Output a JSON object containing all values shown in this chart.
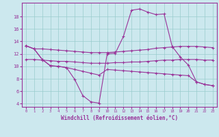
{
  "xlabel": "Windchill (Refroidissement éolien,°C)",
  "x_values": [
    0,
    1,
    2,
    3,
    4,
    5,
    6,
    7,
    8,
    9,
    10,
    11,
    12,
    13,
    14,
    15,
    16,
    17,
    18,
    19,
    20,
    21,
    22,
    23
  ],
  "curve_main": [
    13.3,
    12.8,
    11.1,
    10.1,
    10.0,
    9.8,
    7.9,
    5.3,
    4.3,
    4.1,
    12.0,
    12.1,
    14.8,
    19.0,
    19.2,
    18.7,
    18.3,
    18.4,
    13.2,
    11.5,
    10.2,
    7.5,
    7.1,
    6.9
  ],
  "line_top": [
    13.3,
    12.8,
    12.8,
    12.7,
    12.6,
    12.5,
    12.4,
    12.3,
    12.2,
    12.2,
    12.2,
    12.3,
    12.4,
    12.5,
    12.6,
    12.7,
    12.9,
    13.0,
    13.1,
    13.2,
    13.2,
    13.2,
    13.1,
    13.0
  ],
  "line_mid": [
    11.1,
    11.1,
    11.0,
    10.9,
    10.8,
    10.8,
    10.7,
    10.6,
    10.5,
    10.5,
    10.5,
    10.6,
    10.6,
    10.7,
    10.7,
    10.8,
    10.9,
    11.0,
    11.0,
    11.1,
    11.1,
    11.1,
    11.0,
    11.0
  ],
  "line_bot": [
    13.3,
    12.8,
    11.1,
    10.1,
    10.0,
    9.8,
    9.5,
    9.2,
    8.9,
    8.6,
    9.5,
    9.4,
    9.3,
    9.2,
    9.1,
    9.0,
    8.9,
    8.8,
    8.7,
    8.6,
    8.5,
    7.5,
    7.1,
    6.9
  ],
  "bg_color": "#cce8ee",
  "line_color": "#993399",
  "grid_color": "#99cccc",
  "ylim": [
    3.5,
    20.2
  ],
  "yticks": [
    4,
    6,
    8,
    10,
    12,
    14,
    16,
    18
  ],
  "xticks": [
    0,
    1,
    2,
    3,
    4,
    5,
    6,
    7,
    8,
    9,
    10,
    11,
    12,
    13,
    14,
    15,
    16,
    17,
    18,
    19,
    20,
    21,
    22,
    23
  ]
}
